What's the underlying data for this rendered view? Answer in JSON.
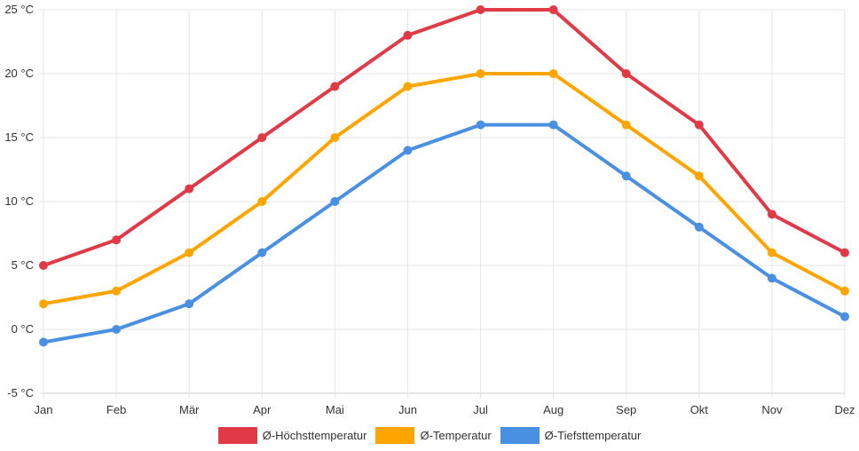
{
  "chart_data": {
    "type": "line",
    "categories": [
      "Jan",
      "Feb",
      "Mär",
      "Apr",
      "Mai",
      "Jun",
      "Jul",
      "Aug",
      "Sep",
      "Okt",
      "Nov",
      "Dez"
    ],
    "y_ticks": [
      "-5 °C",
      "0 °C",
      "5 °C",
      "10 °C",
      "15 °C",
      "20 °C",
      "25 °C"
    ],
    "y_tick_values": [
      -5,
      0,
      5,
      10,
      15,
      20,
      25
    ],
    "ylim": [
      -5,
      25
    ],
    "unit": "°C",
    "grid": true,
    "legend_position": "bottom",
    "series": [
      {
        "name": "Ø-Höchsttemperatur",
        "color": "#e03a47",
        "values": [
          5,
          7,
          11,
          15,
          19,
          23,
          25,
          25,
          20,
          16,
          9,
          6
        ]
      },
      {
        "name": "Ø-Temperatur",
        "color": "#ffa500",
        "values": [
          2,
          3,
          6,
          10,
          15,
          19,
          20,
          20,
          16,
          12,
          6,
          3
        ]
      },
      {
        "name": "Ø-Tiefsttemperatur",
        "color": "#4a90e2",
        "values": [
          -1,
          0,
          2,
          6,
          10,
          14,
          16,
          16,
          12,
          8,
          4,
          1
        ]
      }
    ]
  }
}
